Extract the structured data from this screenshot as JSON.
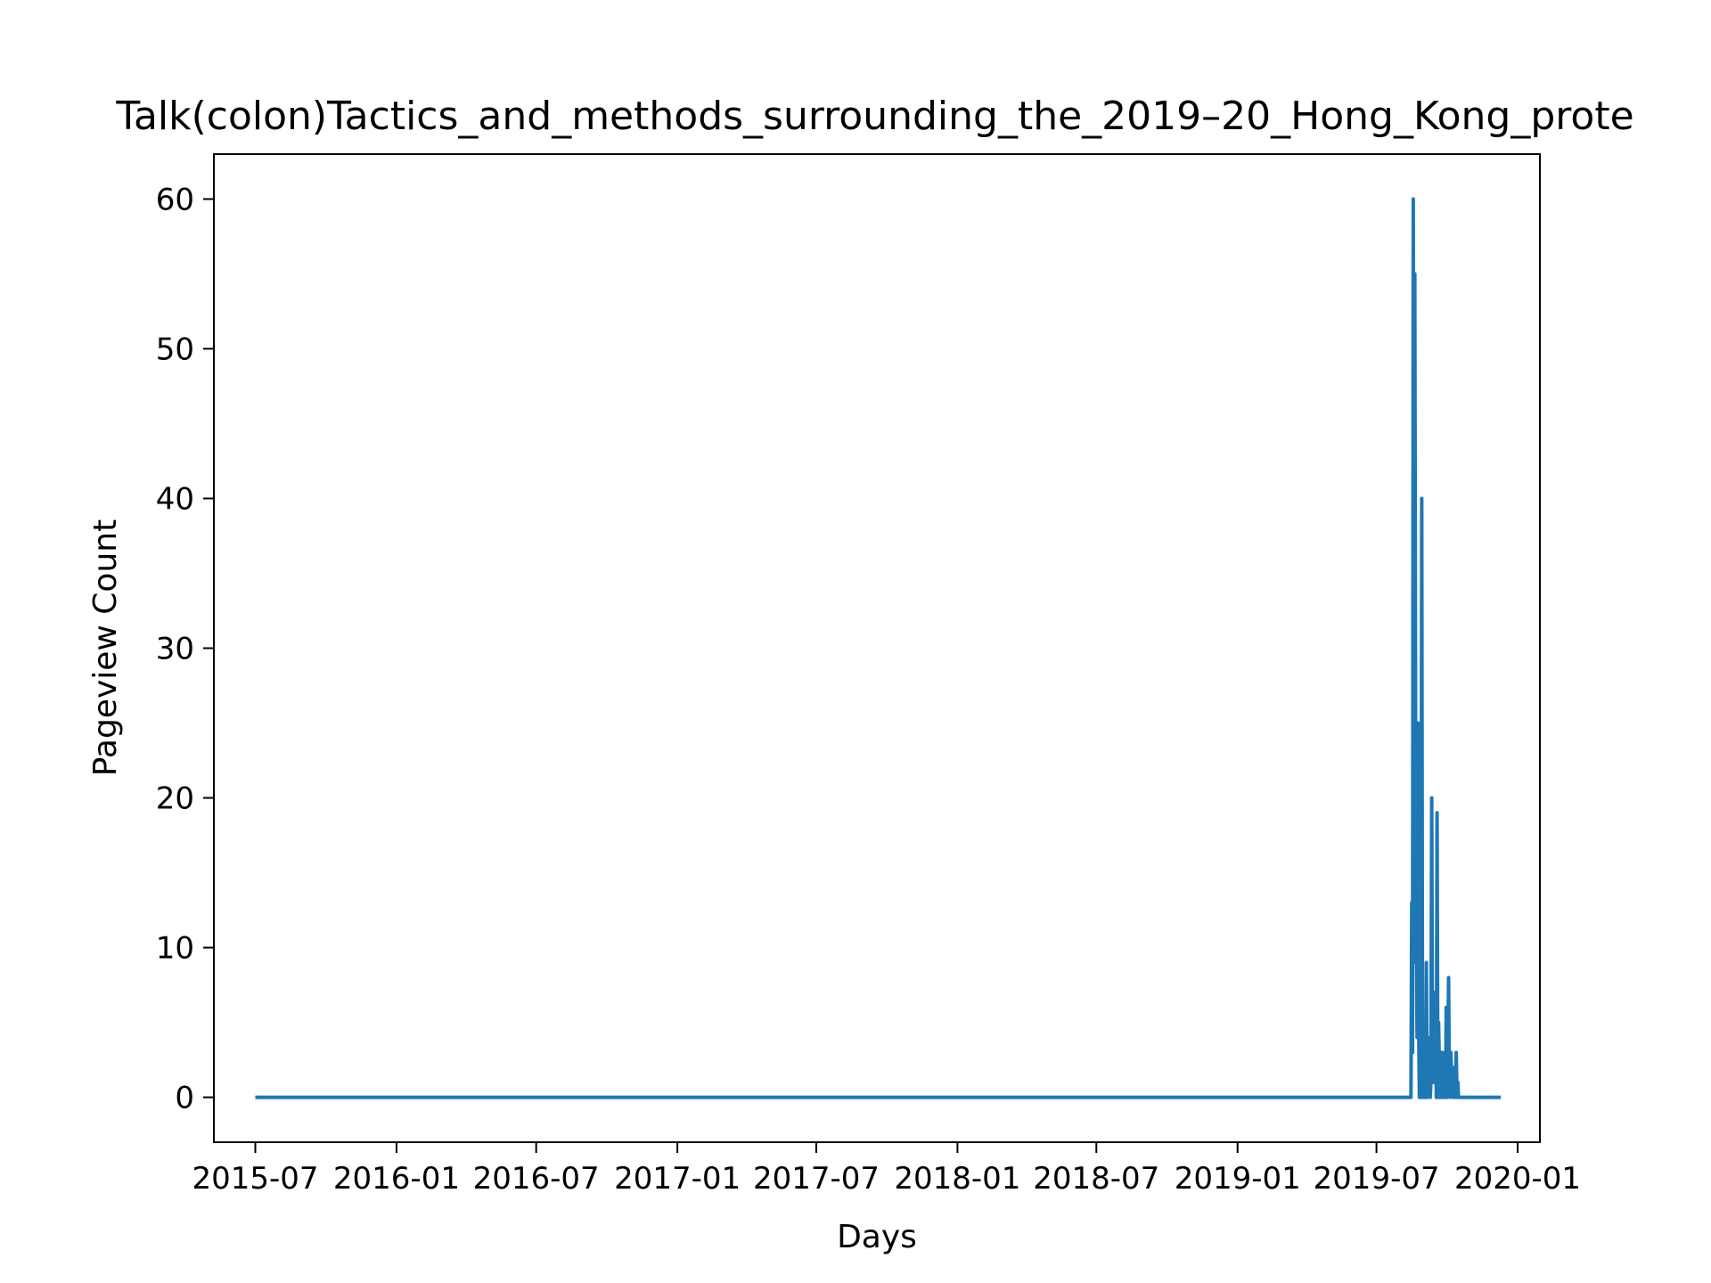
{
  "chart_data": {
    "type": "line",
    "title": "Talk(colon)Tactics_and_methods_surrounding_the_2019–20_Hong_Kong_prote",
    "xlabel": "Days",
    "ylabel": "Pageview Count",
    "x_ticks": [
      "2015-07",
      "2016-01",
      "2016-07",
      "2017-01",
      "2017-07",
      "2018-01",
      "2018-07",
      "2019-01",
      "2019-07",
      "2020-01"
    ],
    "y_ticks": [
      0,
      10,
      20,
      30,
      40,
      50,
      60
    ],
    "xlim": [
      "2015-05-08",
      "2020-01-30"
    ],
    "ylim": [
      -3,
      63
    ],
    "grid": false,
    "legend": "none",
    "series": [
      {
        "color": "#1f77b4",
        "x": [
          "2015-07-01",
          "2019-08-15",
          "2019-08-16",
          "2019-08-17",
          "2019-08-18",
          "2019-08-19",
          "2019-08-20",
          "2019-08-21",
          "2019-08-22",
          "2019-08-23",
          "2019-08-24",
          "2019-08-25",
          "2019-08-26",
          "2019-08-27",
          "2019-08-28",
          "2019-08-29",
          "2019-08-30",
          "2019-08-31",
          "2019-09-01",
          "2019-09-02",
          "2019-09-03",
          "2019-09-04",
          "2019-09-05",
          "2019-09-06",
          "2019-09-07",
          "2019-09-08",
          "2019-09-09",
          "2019-09-10",
          "2019-09-11",
          "2019-09-12",
          "2019-09-13",
          "2019-09-14",
          "2019-09-15",
          "2019-09-16",
          "2019-09-17",
          "2019-09-18",
          "2019-09-19",
          "2019-09-20",
          "2019-09-21",
          "2019-09-22",
          "2019-09-23",
          "2019-09-24",
          "2019-09-25",
          "2019-09-26",
          "2019-09-27",
          "2019-09-28",
          "2019-09-29",
          "2019-09-30",
          "2019-10-01",
          "2019-10-02",
          "2019-10-03",
          "2019-10-04",
          "2019-10-05",
          "2019-10-06",
          "2019-10-07",
          "2019-10-08",
          "2019-10-09",
          "2019-10-10",
          "2019-10-11",
          "2019-10-12",
          "2019-10-13",
          "2019-10-14",
          "2019-10-15",
          "2019-10-16",
          "2019-10-17",
          "2019-10-18",
          "2019-10-19",
          "2019-10-20",
          "2019-10-21",
          "2019-10-22",
          "2019-10-23",
          "2019-10-24",
          "2019-10-25",
          "2019-10-26",
          "2019-10-27",
          "2019-10-28",
          "2019-10-29",
          "2019-10-30",
          "2019-10-31",
          "2019-11-01",
          "2019-11-02",
          "2019-11-03",
          "2019-11-04",
          "2019-11-05",
          "2019-11-06",
          "2019-11-07",
          "2019-11-08",
          "2019-11-09",
          "2019-11-10",
          "2019-11-11",
          "2019-11-12",
          "2019-11-13",
          "2019-11-14",
          "2019-11-15",
          "2019-11-16",
          "2019-11-17",
          "2019-11-18",
          "2019-11-19",
          "2019-11-20",
          "2019-11-21",
          "2019-11-22",
          "2019-11-23",
          "2019-11-24",
          "2019-11-25",
          "2019-11-26",
          "2019-11-27",
          "2019-11-28",
          "2019-11-29",
          "2019-11-30",
          "2019-12-01",
          "2019-12-02",
          "2019-12-03",
          "2019-12-04",
          "2019-12-05",
          "2019-12-06",
          "2019-12-07",
          "2019-12-08",
          "2019-12-09",
          "2019-12-10"
        ],
        "y": [
          0,
          0,
          13,
          3,
          60,
          9,
          55,
          25,
          12,
          4,
          25,
          5,
          0,
          19,
          0,
          40,
          0,
          2,
          0,
          1,
          0,
          9,
          0,
          1,
          4,
          1,
          0,
          1,
          20,
          2,
          1,
          7,
          1,
          5,
          0,
          19,
          0,
          5,
          2,
          0,
          1,
          3,
          0,
          1,
          0,
          3,
          0,
          6,
          0,
          2,
          8,
          1,
          0,
          3,
          1,
          2,
          0,
          1,
          0,
          1,
          3,
          0,
          1,
          0,
          0,
          0,
          0,
          0,
          0,
          0,
          0,
          0,
          0,
          0,
          0,
          0,
          0,
          0,
          0,
          0,
          0,
          0,
          0,
          0,
          0,
          0,
          0,
          0,
          0,
          0,
          0,
          0,
          0,
          0,
          0,
          0,
          0,
          0,
          0,
          0,
          0,
          0,
          0,
          0,
          0,
          0,
          0,
          0,
          0,
          0,
          0,
          0,
          0,
          0,
          0,
          0,
          0,
          0,
          0
        ]
      }
    ]
  }
}
